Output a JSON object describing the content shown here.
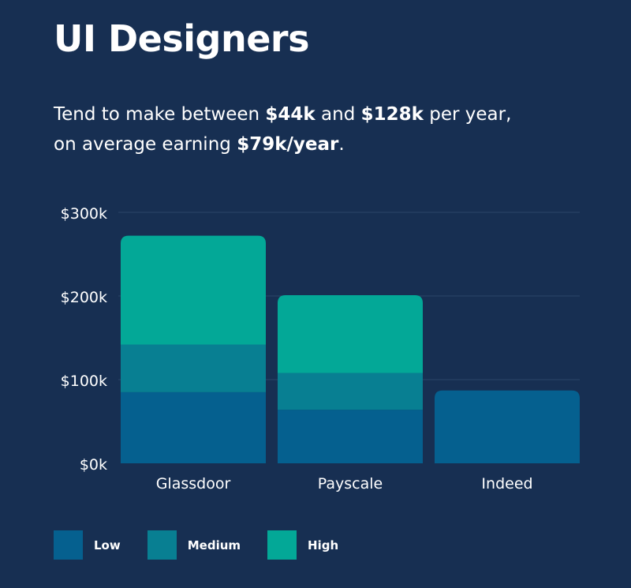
{
  "header": {
    "title": "UI Designers",
    "line1_a": "Tend to make between ",
    "line1_b": "$44k",
    "line1_c": " and ",
    "line1_d": "$128k",
    "line1_e": " per year,",
    "line2_a": "on average earning ",
    "line2_b": "$79k/year",
    "line2_c": "."
  },
  "colors": {
    "background": "#172f52",
    "low": "#05608f",
    "medium": "#087f92",
    "high": "#03a897",
    "grid": "#2b4468"
  },
  "legend": [
    {
      "key": "low",
      "label": "Low"
    },
    {
      "key": "medium",
      "label": "Medium"
    },
    {
      "key": "high",
      "label": "High"
    }
  ],
  "chart_data": {
    "type": "bar",
    "stacked": true,
    "categories": [
      "Glassdoor",
      "Payscale",
      "Indeed"
    ],
    "series": [
      {
        "name": "Low",
        "values": [
          85,
          64,
          87
        ]
      },
      {
        "name": "Medium",
        "values": [
          57,
          44,
          0
        ]
      },
      {
        "name": "High",
        "values": [
          130,
          93,
          0
        ]
      }
    ],
    "ylim": [
      0,
      300
    ],
    "yticks": [
      0,
      100,
      200,
      300
    ],
    "yticklabels": [
      "$0k",
      "$100k",
      "$200k",
      "$300k"
    ],
    "grid": true,
    "legend_position": "bottom-left"
  }
}
